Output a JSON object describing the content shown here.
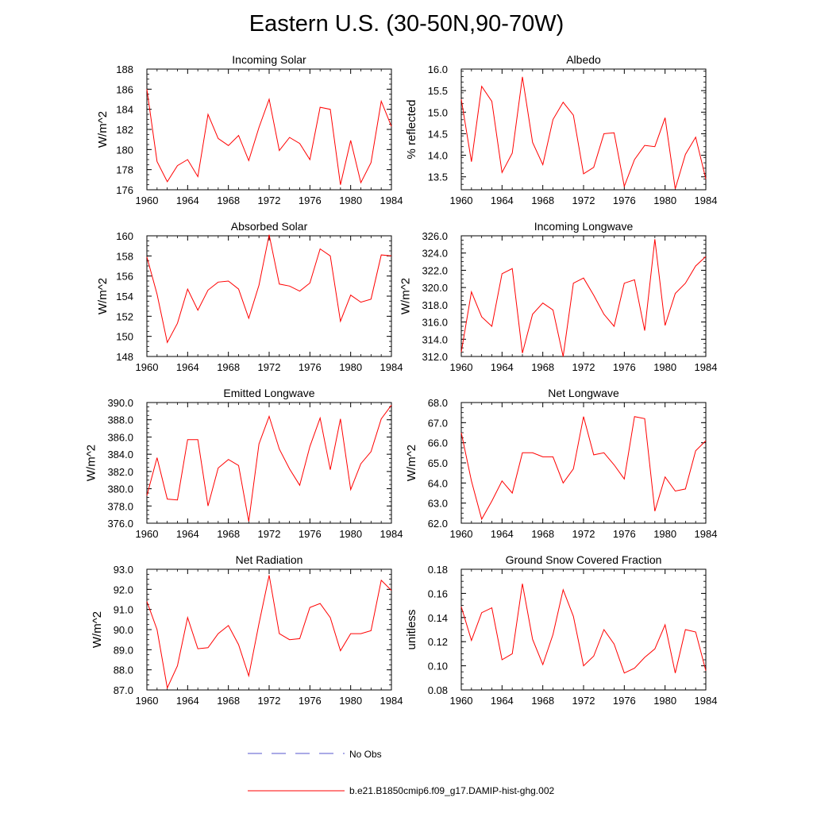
{
  "title": "Eastern U.S. (30-50N,90-70W)",
  "colors": {
    "model": "#ff0000",
    "obs": "#5555cc"
  },
  "legend": {
    "obs_label": "No Obs",
    "model_label": "b.e21.B1850cmip6.f09_g17.DAMIP-hist-ghg.002"
  },
  "chart_data": [
    {
      "type": "line",
      "title": "Incoming Solar",
      "ylabel": "W/m^2",
      "xlim": [
        1960,
        1984
      ],
      "ylim": [
        176,
        188
      ],
      "xticks": [
        1960,
        1964,
        1968,
        1972,
        1976,
        1980,
        1984
      ],
      "yticks": [
        "176",
        "178",
        "180",
        "182",
        "184",
        "186",
        "188"
      ],
      "x": [
        1960,
        1961,
        1962,
        1963,
        1964,
        1965,
        1966,
        1967,
        1968,
        1969,
        1970,
        1971,
        1972,
        1973,
        1974,
        1975,
        1976,
        1977,
        1978,
        1979,
        1980,
        1981,
        1982,
        1983,
        1984
      ],
      "series": [
        {
          "values": [
            186.0,
            178.8,
            176.8,
            178.4,
            179.0,
            177.3,
            183.5,
            181.1,
            180.4,
            181.4,
            178.9,
            182.2,
            185.0,
            179.9,
            181.2,
            180.6,
            179.0,
            184.2,
            184.0,
            176.5,
            180.9,
            176.7,
            178.7,
            184.8,
            182.3
          ]
        }
      ]
    },
    {
      "type": "line",
      "title": "Albedo",
      "ylabel": "% reflected",
      "xlim": [
        1960,
        1984
      ],
      "ylim": [
        13.2,
        16.0
      ],
      "xticks": [
        1960,
        1964,
        1968,
        1972,
        1976,
        1980,
        1984
      ],
      "yticks": [
        "13.5",
        "14.0",
        "14.5",
        "15.0",
        "15.5",
        "16.0"
      ],
      "x": [
        1960,
        1961,
        1962,
        1963,
        1964,
        1965,
        1966,
        1967,
        1968,
        1969,
        1970,
        1971,
        1972,
        1973,
        1974,
        1975,
        1976,
        1977,
        1978,
        1979,
        1980,
        1981,
        1982,
        1983,
        1984
      ],
      "series": [
        {
          "values": [
            15.3,
            13.85,
            15.6,
            15.25,
            13.6,
            14.05,
            15.82,
            14.3,
            13.78,
            14.83,
            15.23,
            14.93,
            13.57,
            13.72,
            14.5,
            14.52,
            13.28,
            13.9,
            14.23,
            14.2,
            14.87,
            13.22,
            14.02,
            14.42,
            13.45
          ]
        }
      ]
    },
    {
      "type": "line",
      "title": "Absorbed Solar",
      "ylabel": "W/m^2",
      "xlim": [
        1960,
        1984
      ],
      "ylim": [
        148,
        160
      ],
      "xticks": [
        1960,
        1964,
        1968,
        1972,
        1976,
        1980,
        1984
      ],
      "yticks": [
        "148",
        "150",
        "152",
        "154",
        "156",
        "158",
        "160"
      ],
      "x": [
        1960,
        1961,
        1962,
        1963,
        1964,
        1965,
        1966,
        1967,
        1968,
        1969,
        1970,
        1971,
        1972,
        1973,
        1974,
        1975,
        1976,
        1977,
        1978,
        1979,
        1980,
        1981,
        1982,
        1983,
        1984
      ],
      "series": [
        {
          "values": [
            157.9,
            154.2,
            149.4,
            151.3,
            154.7,
            152.6,
            154.6,
            155.4,
            155.5,
            154.7,
            151.8,
            155.1,
            160.1,
            155.2,
            155.0,
            154.5,
            155.3,
            158.7,
            158.0,
            151.5,
            154.1,
            153.4,
            153.7,
            158.1,
            158.0
          ]
        }
      ]
    },
    {
      "type": "line",
      "title": "Incoming Longwave",
      "ylabel": "W/m^2",
      "xlim": [
        1960,
        1984
      ],
      "ylim": [
        312,
        326
      ],
      "xticks": [
        1960,
        1964,
        1968,
        1972,
        1976,
        1980,
        1984
      ],
      "yticks": [
        "312.0",
        "314.0",
        "316.0",
        "318.0",
        "320.0",
        "322.0",
        "324.0",
        "326.0"
      ],
      "x": [
        1960,
        1961,
        1962,
        1963,
        1964,
        1965,
        1966,
        1967,
        1968,
        1969,
        1970,
        1971,
        1972,
        1973,
        1974,
        1975,
        1976,
        1977,
        1978,
        1979,
        1980,
        1981,
        1982,
        1983,
        1984
      ],
      "series": [
        {
          "values": [
            312.5,
            319.5,
            316.6,
            315.5,
            321.6,
            322.2,
            312.4,
            316.9,
            318.2,
            317.4,
            312.0,
            320.5,
            321.1,
            319.1,
            316.9,
            315.5,
            320.5,
            320.9,
            315.0,
            325.6,
            315.6,
            319.3,
            320.5,
            322.5,
            323.6
          ]
        }
      ]
    },
    {
      "type": "line",
      "title": "Emitted Longwave",
      "ylabel": "W/m^2",
      "xlim": [
        1960,
        1984
      ],
      "ylim": [
        376,
        390
      ],
      "xticks": [
        1960,
        1964,
        1968,
        1972,
        1976,
        1980,
        1984
      ],
      "yticks": [
        "376.0",
        "378.0",
        "380.0",
        "382.0",
        "384.0",
        "386.0",
        "388.0",
        "390.0"
      ],
      "x": [
        1960,
        1961,
        1962,
        1963,
        1964,
        1965,
        1966,
        1967,
        1968,
        1969,
        1970,
        1971,
        1972,
        1973,
        1974,
        1975,
        1976,
        1977,
        1978,
        1979,
        1980,
        1981,
        1982,
        1983,
        1984
      ],
      "series": [
        {
          "values": [
            379.2,
            383.6,
            378.8,
            378.7,
            385.7,
            385.7,
            378.0,
            382.4,
            383.4,
            382.7,
            376.2,
            385.2,
            388.4,
            384.6,
            382.3,
            380.4,
            384.9,
            388.2,
            382.2,
            388.1,
            379.9,
            382.9,
            384.3,
            388.1,
            389.7
          ]
        }
      ]
    },
    {
      "type": "line",
      "title": "Net Longwave",
      "ylabel": "W/m^2",
      "xlim": [
        1960,
        1984
      ],
      "ylim": [
        62,
        68
      ],
      "xticks": [
        1960,
        1964,
        1968,
        1972,
        1976,
        1980,
        1984
      ],
      "yticks": [
        "62.0",
        "63.0",
        "64.0",
        "65.0",
        "66.0",
        "67.0",
        "68.0"
      ],
      "x": [
        1960,
        1961,
        1962,
        1963,
        1964,
        1965,
        1966,
        1967,
        1968,
        1969,
        1970,
        1971,
        1972,
        1973,
        1974,
        1975,
        1976,
        1977,
        1978,
        1979,
        1980,
        1981,
        1982,
        1983,
        1984
      ],
      "series": [
        {
          "values": [
            66.5,
            64.1,
            62.2,
            63.1,
            64.1,
            63.5,
            65.5,
            65.5,
            65.3,
            65.3,
            64.0,
            64.7,
            67.3,
            65.4,
            65.5,
            64.9,
            64.2,
            67.3,
            67.2,
            62.6,
            64.3,
            63.6,
            63.7,
            65.6,
            66.1
          ]
        }
      ]
    },
    {
      "type": "line",
      "title": "Net Radiation",
      "ylabel": "W/m^2",
      "xlim": [
        1960,
        1984
      ],
      "ylim": [
        87,
        93
      ],
      "xticks": [
        1960,
        1964,
        1968,
        1972,
        1976,
        1980,
        1984
      ],
      "yticks": [
        "87.0",
        "88.0",
        "89.0",
        "90.0",
        "91.0",
        "92.0",
        "93.0"
      ],
      "x": [
        1960,
        1961,
        1962,
        1963,
        1964,
        1965,
        1966,
        1967,
        1968,
        1969,
        1970,
        1971,
        1972,
        1973,
        1974,
        1975,
        1976,
        1977,
        1978,
        1979,
        1980,
        1981,
        1982,
        1983,
        1984
      ],
      "series": [
        {
          "values": [
            91.4,
            90.0,
            87.1,
            88.2,
            90.6,
            89.05,
            89.1,
            89.8,
            90.2,
            89.25,
            87.7,
            90.3,
            92.7,
            89.8,
            89.5,
            89.55,
            91.1,
            91.3,
            90.6,
            88.95,
            89.8,
            89.8,
            89.95,
            92.45,
            91.95
          ]
        }
      ]
    },
    {
      "type": "line",
      "title": "Ground Snow Covered Fraction",
      "ylabel": "unitless",
      "xlim": [
        1960,
        1984
      ],
      "ylim": [
        0.08,
        0.18
      ],
      "xticks": [
        1960,
        1964,
        1968,
        1972,
        1976,
        1980,
        1984
      ],
      "yticks": [
        "0.08",
        "0.10",
        "0.12",
        "0.14",
        "0.16",
        "0.18"
      ],
      "x": [
        1960,
        1961,
        1962,
        1963,
        1964,
        1965,
        1966,
        1967,
        1968,
        1969,
        1970,
        1971,
        1972,
        1973,
        1974,
        1975,
        1976,
        1977,
        1978,
        1979,
        1980,
        1981,
        1982,
        1983,
        1984
      ],
      "series": [
        {
          "values": [
            0.149,
            0.121,
            0.144,
            0.148,
            0.105,
            0.11,
            0.168,
            0.122,
            0.101,
            0.126,
            0.163,
            0.141,
            0.1,
            0.108,
            0.13,
            0.118,
            0.094,
            0.098,
            0.107,
            0.114,
            0.134,
            0.094,
            0.13,
            0.128,
            0.096
          ]
        }
      ]
    }
  ]
}
